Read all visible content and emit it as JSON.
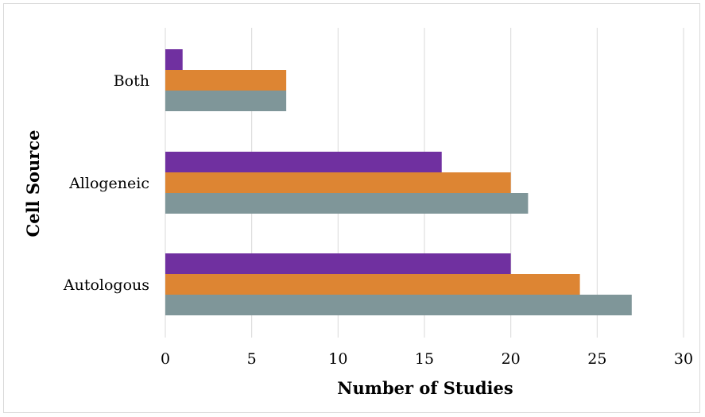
{
  "chart_data": {
    "type": "bar",
    "orientation": "horizontal",
    "title": "",
    "xlabel": "Number of Studies",
    "ylabel": "Cell Source",
    "categories": [
      "Autologous",
      "Allogeneic",
      "Both"
    ],
    "xlim": [
      0,
      30
    ],
    "xticks": [
      0,
      5,
      10,
      15,
      20,
      25,
      30
    ],
    "grid": "vertical",
    "legend": "none",
    "series": [
      {
        "color": "#7f9699",
        "values": [
          27,
          21,
          7
        ]
      },
      {
        "color": "#dd8533",
        "values": [
          24,
          20,
          7
        ]
      },
      {
        "color": "#7030a0",
        "values": [
          20,
          16,
          1
        ]
      }
    ]
  }
}
